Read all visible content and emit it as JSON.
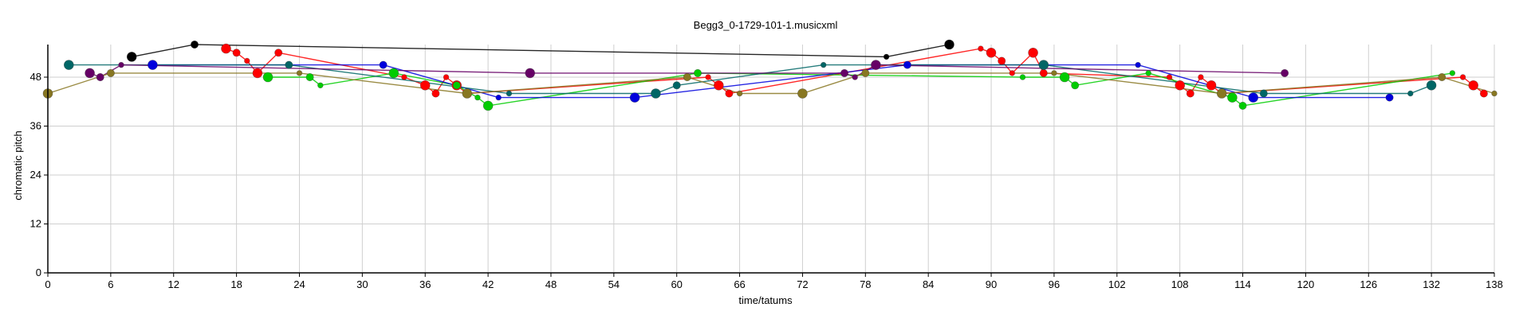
{
  "chart_data": {
    "type": "scatter",
    "title": "Begg3_0-1729-101-1.musicxml",
    "xlabel": "time/tatums",
    "ylabel": "chromatic pitch",
    "xlim": [
      0,
      138
    ],
    "ylim": [
      0,
      56
    ],
    "xticks": [
      0,
      6,
      12,
      18,
      24,
      30,
      36,
      42,
      48,
      54,
      60,
      66,
      72,
      78,
      84,
      90,
      96,
      102,
      108,
      114,
      120,
      126,
      132,
      138
    ],
    "yticks": [
      0,
      12,
      24,
      36,
      48
    ],
    "grid": true,
    "series": [
      {
        "color": "#ff0000",
        "points": [
          [
            17,
            55
          ],
          [
            18,
            54
          ],
          [
            19,
            52
          ],
          [
            20,
            49
          ],
          [
            22,
            54
          ],
          [
            34,
            48
          ],
          [
            36,
            46
          ],
          [
            37,
            44
          ],
          [
            38,
            48
          ],
          [
            39,
            46
          ],
          [
            40,
            44
          ],
          [
            63,
            48
          ],
          [
            64,
            46
          ],
          [
            65,
            44
          ],
          [
            89,
            55
          ],
          [
            90,
            54
          ],
          [
            91,
            52
          ],
          [
            92,
            49
          ],
          [
            94,
            54
          ],
          [
            95,
            49
          ],
          [
            107,
            48
          ],
          [
            108,
            46
          ],
          [
            109,
            44
          ],
          [
            110,
            48
          ],
          [
            111,
            46
          ],
          [
            112,
            44
          ],
          [
            135,
            48
          ],
          [
            136,
            46
          ],
          [
            137,
            44
          ]
        ]
      },
      {
        "color": "#00cc00",
        "points": [
          [
            21,
            48
          ],
          [
            25,
            48
          ],
          [
            26,
            46
          ],
          [
            33,
            49
          ],
          [
            39,
            46
          ],
          [
            41,
            43
          ],
          [
            42,
            41
          ],
          [
            62,
            49
          ],
          [
            93,
            48
          ],
          [
            97,
            48
          ],
          [
            98,
            46
          ],
          [
            105,
            49
          ],
          [
            113,
            43
          ],
          [
            114,
            41
          ],
          [
            134,
            49
          ]
        ]
      },
      {
        "color": "#0000dd",
        "points": [
          [
            10,
            51
          ],
          [
            32,
            51
          ],
          [
            43,
            43
          ],
          [
            56,
            43
          ],
          [
            82,
            51
          ],
          [
            104,
            51
          ],
          [
            115,
            43
          ],
          [
            128,
            43
          ]
        ]
      },
      {
        "color": "#006666",
        "points": [
          [
            2,
            51
          ],
          [
            23,
            51
          ],
          [
            44,
            44
          ],
          [
            58,
            44
          ],
          [
            60,
            46
          ],
          [
            74,
            51
          ],
          [
            95,
            51
          ],
          [
            116,
            44
          ],
          [
            130,
            44
          ],
          [
            132,
            46
          ]
        ]
      },
      {
        "color": "#660066",
        "points": [
          [
            4,
            49
          ],
          [
            5,
            48
          ],
          [
            7,
            51
          ],
          [
            46,
            49
          ],
          [
            76,
            49
          ],
          [
            77,
            48
          ],
          [
            79,
            51
          ],
          [
            118,
            49
          ]
        ]
      },
      {
        "color": "#887722",
        "points": [
          [
            0,
            44
          ],
          [
            6,
            49
          ],
          [
            24,
            49
          ],
          [
            40,
            44
          ],
          [
            61,
            48
          ],
          [
            66,
            44
          ],
          [
            72,
            44
          ],
          [
            78,
            49
          ],
          [
            96,
            49
          ],
          [
            112,
            44
          ],
          [
            133,
            48
          ],
          [
            138,
            44
          ]
        ]
      },
      {
        "color": "#000000",
        "points": [
          [
            8,
            53
          ],
          [
            14,
            56
          ],
          [
            80,
            53
          ],
          [
            86,
            56
          ]
        ]
      }
    ]
  }
}
